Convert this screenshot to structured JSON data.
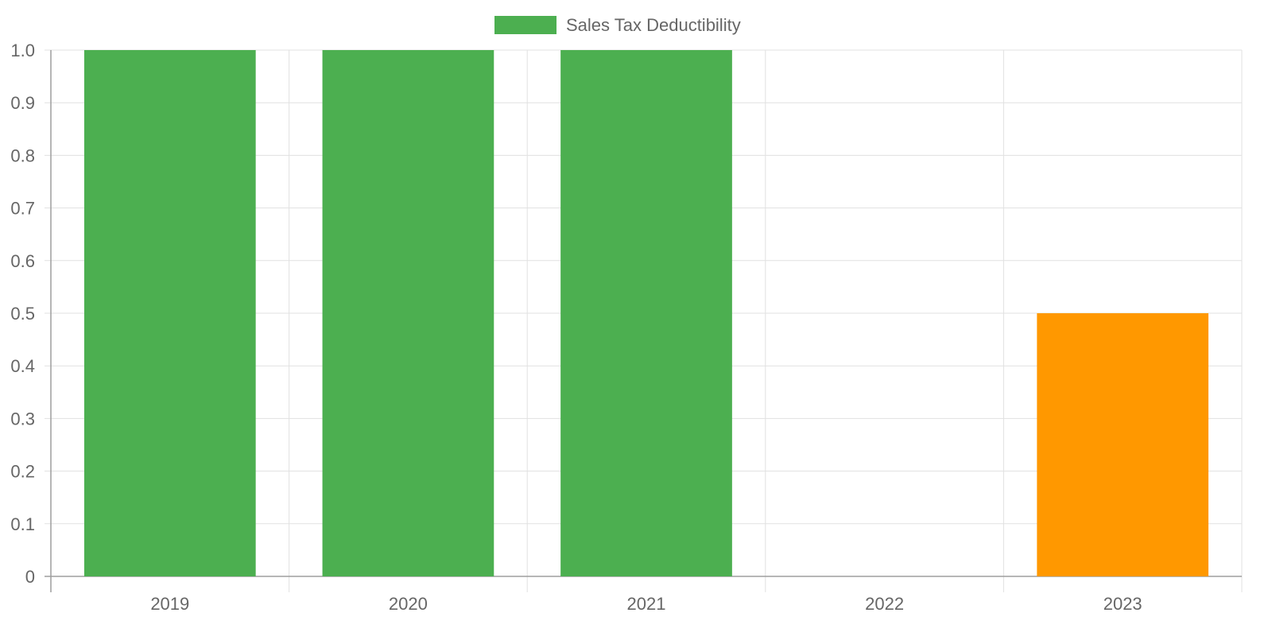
{
  "chart_data": {
    "type": "bar",
    "title": "",
    "xlabel": "",
    "ylabel": "",
    "categories": [
      "2019",
      "2020",
      "2021",
      "2022",
      "2023"
    ],
    "series": [
      {
        "name": "Sales Tax Deductibility",
        "values": [
          1,
          1,
          1,
          0,
          0.5
        ],
        "colors": [
          "#4caf50",
          "#4caf50",
          "#4caf50",
          "#4caf50",
          "#ff9800"
        ]
      }
    ],
    "ylim": [
      0,
      1
    ],
    "y_ticks": [
      "0",
      "0.1",
      "0.2",
      "0.3",
      "0.4",
      "0.5",
      "0.6",
      "0.7",
      "0.8",
      "0.9",
      "1.0"
    ],
    "grid": true,
    "legend_position": "top-center",
    "legend_color": "#4caf50"
  }
}
